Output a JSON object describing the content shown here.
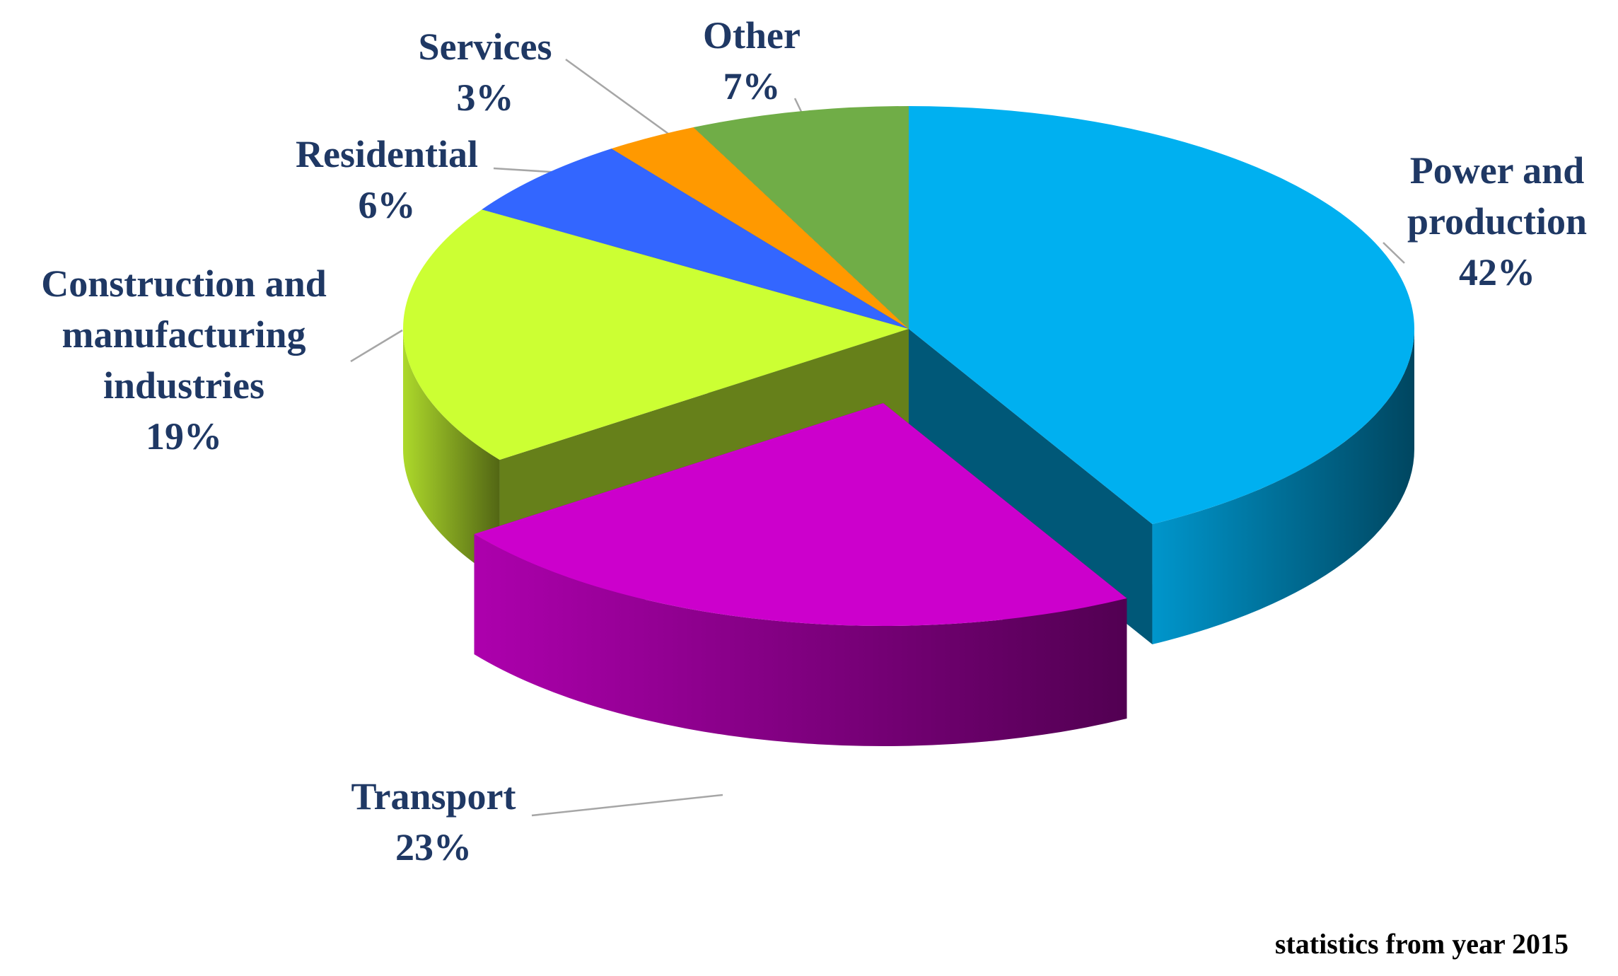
{
  "chart_data": {
    "type": "pie",
    "categories": [
      "Power and production",
      "Transport",
      "Construction and manufacturing industries",
      "Residential",
      "Services",
      "Other"
    ],
    "values": [
      42,
      23,
      19,
      6,
      3,
      7
    ],
    "value_labels": [
      "42%",
      "23%",
      "19%",
      "6%",
      "3%",
      "7%"
    ],
    "colors": [
      "#00b0f0",
      "#cc00cc",
      "#ccff33",
      "#3366ff",
      "#ff9900",
      "#70ad47"
    ],
    "note": "statistics from year 2015"
  }
}
